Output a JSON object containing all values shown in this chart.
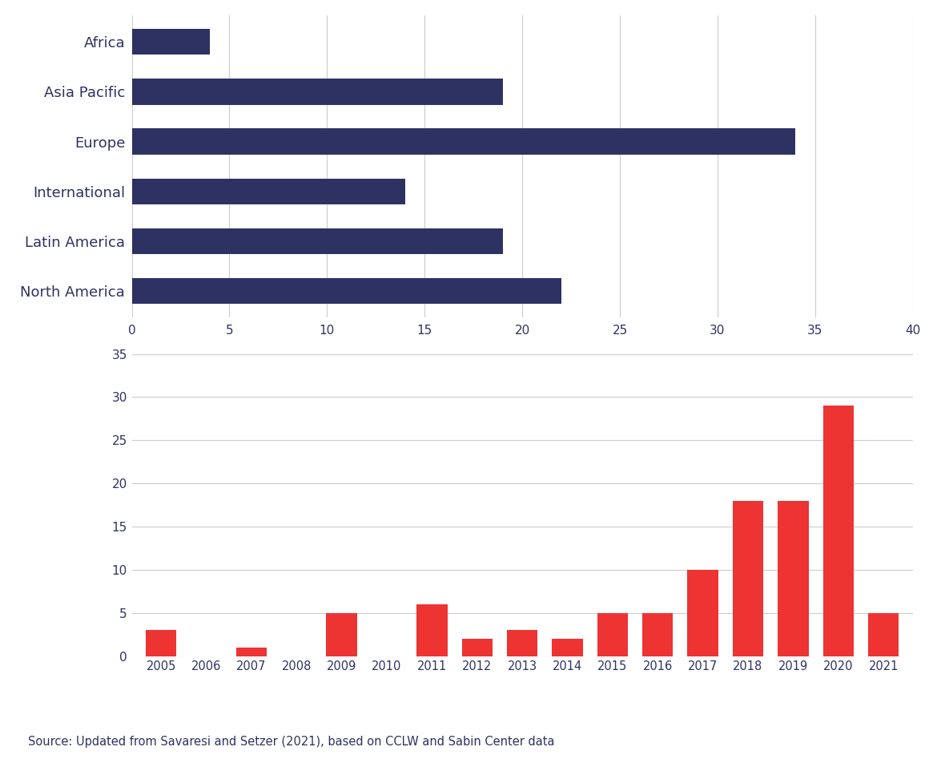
{
  "bar_categories": [
    "Africa",
    "Asia Pacific",
    "Europe",
    "International",
    "Latin America",
    "North America"
  ],
  "bar_values": [
    4,
    19,
    34,
    14,
    19,
    22
  ],
  "bar_color": "#2e3263",
  "bar_xlim": [
    0,
    40
  ],
  "bar_xticks": [
    0,
    5,
    10,
    15,
    20,
    25,
    30,
    35,
    40
  ],
  "years": [
    2005,
    2006,
    2007,
    2008,
    2009,
    2010,
    2011,
    2012,
    2013,
    2014,
    2015,
    2016,
    2017,
    2018,
    2019,
    2020,
    2021
  ],
  "year_values": [
    3,
    0,
    1,
    0,
    5,
    0,
    6,
    2,
    3,
    2,
    5,
    5,
    10,
    18,
    18,
    29,
    5
  ],
  "red_color": "#ee3333",
  "year_ylim": [
    0,
    35
  ],
  "year_yticks": [
    0,
    5,
    10,
    15,
    20,
    25,
    30,
    35
  ],
  "source_text": "Source: Updated from Savaresi and Setzer (2021), based on CCLW and Sabin Center data",
  "background_color": "#ffffff",
  "grid_color": "#cccccc",
  "text_color": "#2e3263",
  "tick_color": "#2e3263"
}
